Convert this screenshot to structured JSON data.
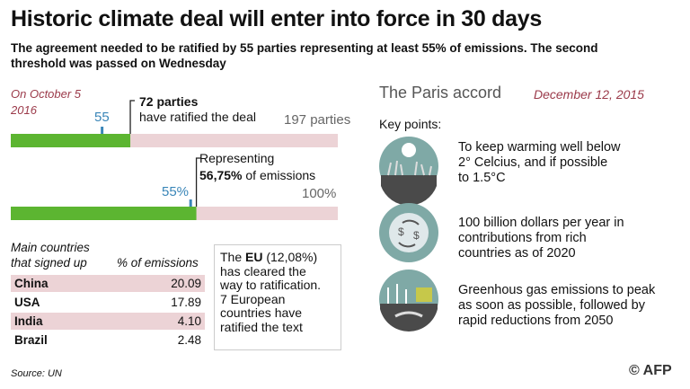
{
  "header": {
    "title": "Historic climate deal will enter into force in 30 days",
    "subtitle_lines": [
      "The agreement needed to be ratified by 55 parties representing at least 55% of emissions. The second",
      "threshold was passed on Wednesday"
    ]
  },
  "date_left": [
    "On October 5",
    "2016"
  ],
  "chart_data": [
    {
      "type": "progress",
      "xlim": [
        0,
        197
      ],
      "value": 72,
      "threshold": 55,
      "value_label": [
        "72 parties",
        "have ratified the deal"
      ],
      "end_label": "197 parties",
      "color": "#5cb531",
      "track_color": "#ecd3d6",
      "threshold_color": "#3a86b8"
    },
    {
      "type": "progress",
      "xlim": [
        0,
        100
      ],
      "value": 56.75,
      "threshold": {
        "value": 55,
        "label": "55%"
      },
      "value_label": [
        "Representing",
        "56,75%",
        "of emissions"
      ],
      "end_label": "100%",
      "color": "#5cb531",
      "track_color": "#ecd3d6",
      "threshold_color": "#3a86b8"
    }
  ],
  "table": {
    "header": [
      [
        "Main countries",
        "that signed up"
      ],
      "% of emissions"
    ],
    "rows": [
      [
        "China",
        "20.09"
      ],
      [
        "USA",
        "17.89"
      ],
      [
        "India",
        "4.10"
      ],
      [
        "Brazil",
        "2.48"
      ]
    ]
  },
  "eu_box": {
    "lead": "The",
    "bold": "EU",
    "share": "(12,08%)",
    "lines": [
      "has cleared the",
      "way to ratification.",
      "7 European",
      "countries have",
      "ratified the text"
    ]
  },
  "paris": {
    "title": "The Paris accord",
    "date": "December 12, 2015",
    "subtitle": "Key points:",
    "points": [
      [
        "To keep warming well below",
        "2° Celcius, and if possible",
        "to 1.5°C"
      ],
      [
        "100 billion dollars per year in",
        "contributions from rich",
        "countries as of 2020"
      ],
      [
        "Greenhous gas emissions to peak",
        "as soon as possible, followed by",
        "rapid reductions from 2050"
      ]
    ]
  },
  "footer": {
    "source": "Source: UN",
    "credit": "© AFP"
  }
}
